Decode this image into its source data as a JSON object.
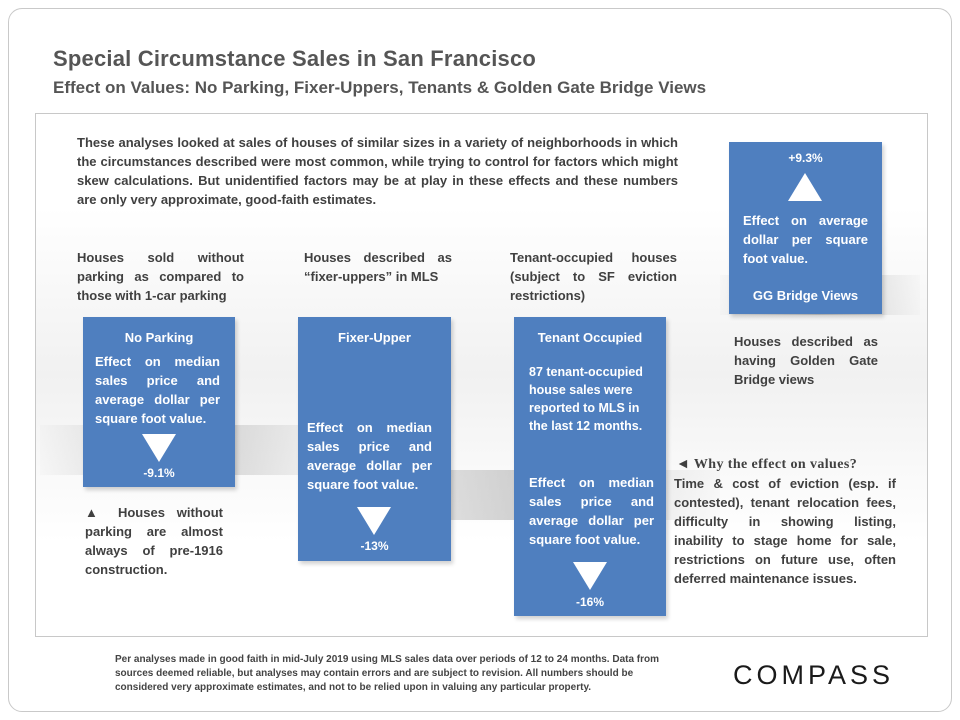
{
  "slide": {
    "title": "Special Circumstance Sales in San Francisco",
    "subtitle": "Effect on Values: No Parking, Fixer-Uppers, Tenants & Golden Gate Bridge Views",
    "intro": "These analyses looked at sales of houses of similar sizes in a variety of neighborhoods in which the circumstances described were most common, while trying to control for factors which might skew calculations. But unidentified factors may be at play in these effects and these numbers are only very approximate, good-faith estimates."
  },
  "captions": {
    "no_parking": "Houses sold without parking as compared to those with 1-car parking",
    "fixer_upper": "Houses described as “fixer-uppers” in MLS",
    "tenant": "Tenant-occupied houses (subject to SF eviction restrictions)",
    "gg_bridge": "Houses described as having Golden Gate Bridge views"
  },
  "boxes": {
    "no_parking": {
      "title": "No Parking",
      "text": "Effect on median sales price and average dollar per square foot value.",
      "value": "-9.1%"
    },
    "fixer_upper": {
      "title": "Fixer-Upper",
      "text": "Effect on median sales price and average dollar per square foot value.",
      "value": "-13%"
    },
    "tenant": {
      "title": "Tenant Occupied",
      "note": "87 tenant-occupied house sales were reported to MLS in the last 12 months.",
      "text": "Effect on median sales price and average dollar per square foot value.",
      "value": "-16%"
    },
    "gg_bridge": {
      "value": "+9.3%",
      "text": "Effect on average dollar per square foot value.",
      "title": "GG Bridge Views"
    }
  },
  "notes": {
    "no_parking": "▲ Houses without parking are almost always of pre-1916 construction.",
    "why_head": "◄ Why the effect on values?",
    "why_body": "Time & cost of eviction (esp. if contested), tenant relocation fees, difficulty in showing listing, inability to stage home for sale, restrictions on future use, often deferred maintenance issues."
  },
  "footer": {
    "disclaimer": "Per analyses made in good faith in mid-July 2019 using MLS sales data over periods of 12 to 24 months. Data from sources deemed reliable, but analyses may contain errors and are subject to revision. All numbers should be considered very approximate estimates, and not to be relied upon in valuing any particular property.",
    "logo": "COMPASS"
  },
  "colors": {
    "box_blue": "#4f7fbf",
    "title_gray": "#555555"
  },
  "icons": [
    "triangle-down-icon",
    "triangle-up-icon"
  ]
}
